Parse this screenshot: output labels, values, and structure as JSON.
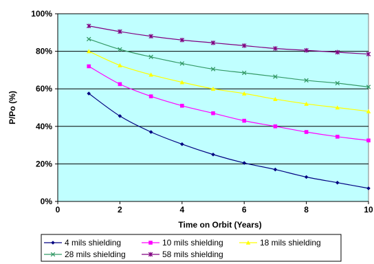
{
  "chart_data": {
    "type": "line",
    "title": "",
    "xlabel": "Time on Orbit (Years)",
    "ylabel": "P/Po (%)",
    "xlim": [
      0,
      10
    ],
    "ylim": [
      0,
      100
    ],
    "x_ticks": [
      0,
      2,
      4,
      6,
      8,
      10
    ],
    "y_ticks": [
      0,
      20,
      40,
      60,
      80,
      100
    ],
    "x_tick_labels": [
      "0",
      "2",
      "4",
      "6",
      "8",
      "10"
    ],
    "y_tick_labels": [
      "0%",
      "20%",
      "40%",
      "60%",
      "80%",
      "100%"
    ],
    "grid": "horizontal",
    "legend": "bottom",
    "plot_background": "#c0ffff",
    "x": [
      1,
      2,
      3,
      4,
      5,
      6,
      7,
      8,
      9,
      10
    ],
    "series": [
      {
        "name": "4 mils shielding",
        "marker": "diamond",
        "color": "#000080",
        "values": [
          57.5,
          45.5,
          37,
          30.5,
          25,
          20.5,
          17,
          13,
          10,
          7
        ]
      },
      {
        "name": "10 mils shielding",
        "marker": "square",
        "color": "#ff00ff",
        "values": [
          72,
          62.5,
          56,
          51,
          47,
          43,
          40,
          37,
          34.5,
          32.5
        ]
      },
      {
        "name": "18 mils shielding",
        "marker": "triangle",
        "color": "#ffff00",
        "values": [
          80,
          72.5,
          67.5,
          63.5,
          60,
          57.5,
          54.5,
          52,
          50,
          48
        ]
      },
      {
        "name": "28 mils shielding",
        "marker": "x",
        "color": "#339966",
        "values": [
          86.5,
          81,
          77,
          73.5,
          70.5,
          68.5,
          66.5,
          64.5,
          63,
          61
        ]
      },
      {
        "name": "58 mils shielding",
        "marker": "star",
        "color": "#800080",
        "values": [
          93.5,
          90.5,
          88,
          86,
          84.5,
          83,
          81.5,
          80.5,
          79.5,
          78.5
        ]
      }
    ]
  }
}
